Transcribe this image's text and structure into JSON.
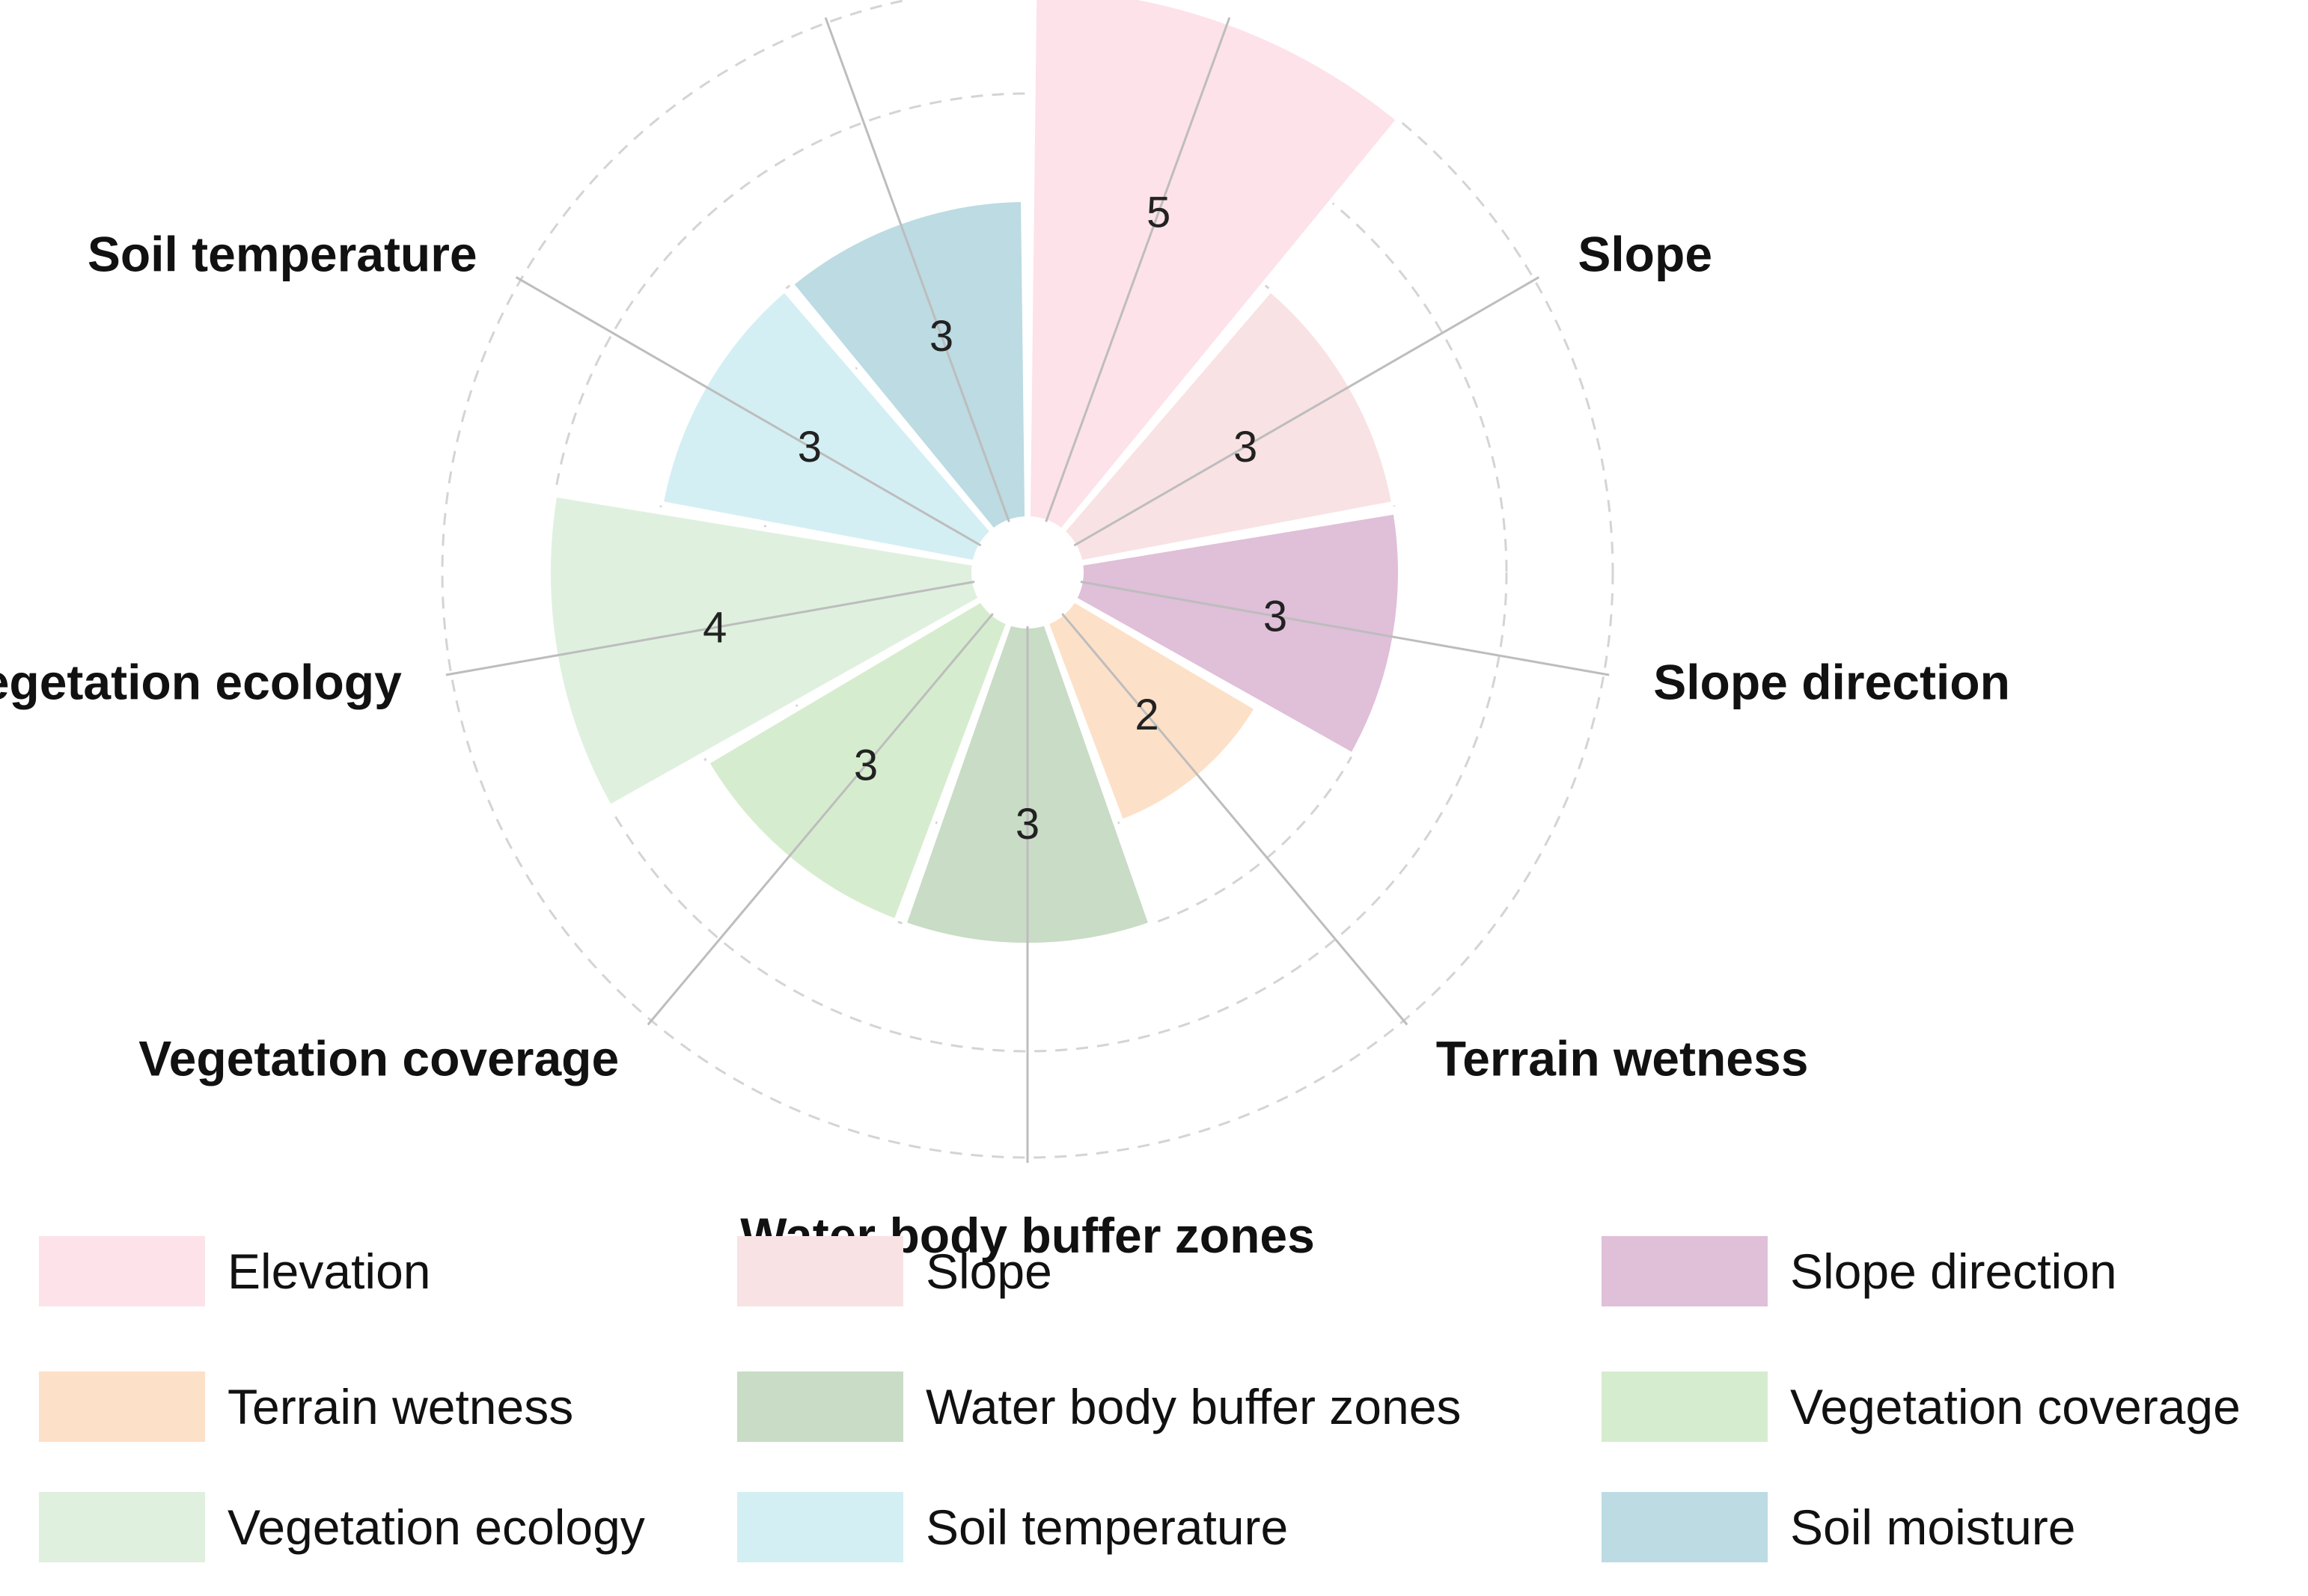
{
  "chart_data": {
    "type": "polar_bar",
    "title": "",
    "categories": [
      "Elevation",
      "Slope",
      "Slope direction",
      "Terrain wetness",
      "Water body buffer zones",
      "Vegetation coverage",
      "Vegetation ecology",
      "Soil temperature",
      "Soil moisture"
    ],
    "values": [
      5,
      3,
      3,
      2,
      3,
      3,
      4,
      3,
      3
    ],
    "colors": [
      "#fde2ea",
      "#f8e2e4",
      "#e0bfd8",
      "#fde0c8",
      "#c9dcc6",
      "#d6ecce",
      "#dff0df",
      "#d4eff4",
      "#bcdbe3"
    ],
    "ylim": [
      0,
      5
    ],
    "radial_grid": [
      1,
      2,
      3,
      4,
      5
    ],
    "grid": true,
    "legend_position": "bottom"
  }
}
